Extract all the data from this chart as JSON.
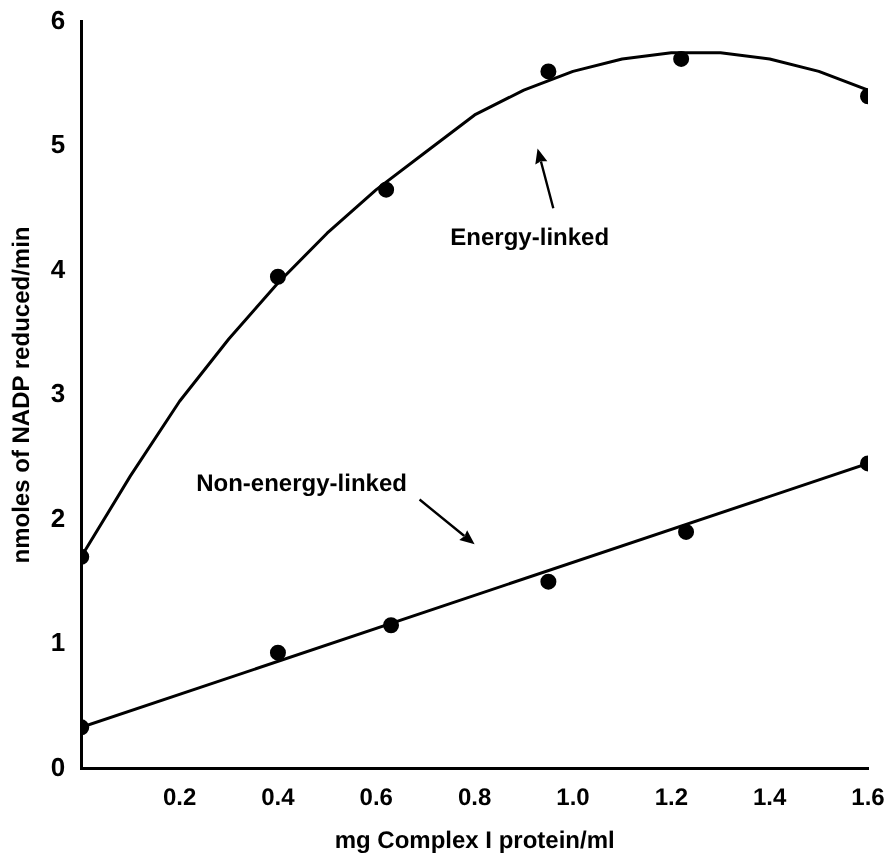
{
  "chart_data": {
    "type": "scatter",
    "xlabel": "mg Complex I protein/ml",
    "ylabel": "nmoles of NADP reduced/min",
    "xlim": [
      0,
      1.6
    ],
    "ylim": [
      0,
      6
    ],
    "xticks": [
      0.2,
      0.4,
      0.6,
      0.8,
      {
        "value": 1.0,
        "label": "1.0"
      },
      1.2,
      1.4,
      1.6
    ],
    "yticks": [
      0,
      1,
      2,
      3,
      4,
      5,
      6
    ],
    "grid": false,
    "legend": false,
    "marker": "circle",
    "series": [
      {
        "color": "#000000",
        "x": [
          0,
          0.4,
          0.62,
          0.95,
          1.22,
          1.6
        ],
        "values": [
          1.7,
          3.95,
          4.65,
          5.6,
          5.7,
          5.4
        ]
      },
      {
        "color": "#000000",
        "x": [
          0,
          0.4,
          0.63,
          0.95,
          1.23,
          1.6
        ],
        "values": [
          0.33,
          0.93,
          1.15,
          1.5,
          1.9,
          2.45
        ]
      },
      {
        "type": "line",
        "color": "#000000",
        "marker": "none",
        "x": [
          0,
          0.1,
          0.2,
          0.3,
          0.4,
          0.5,
          0.6,
          0.7,
          0.8,
          0.9,
          1.0,
          1.1,
          1.2,
          1.3,
          1.4,
          1.5,
          1.6
        ],
        "values": [
          1.7,
          2.35,
          2.95,
          3.45,
          3.9,
          4.3,
          4.65,
          4.95,
          5.25,
          5.45,
          5.6,
          5.7,
          5.75,
          5.75,
          5.7,
          5.6,
          5.45
        ]
      },
      {
        "type": "line",
        "color": "#000000",
        "marker": "none",
        "x": [
          0,
          1.6
        ],
        "values": [
          0.33,
          2.45
        ]
      }
    ],
    "annotations": [
      "Energy-linked",
      "Non-energy-linked"
    ]
  }
}
